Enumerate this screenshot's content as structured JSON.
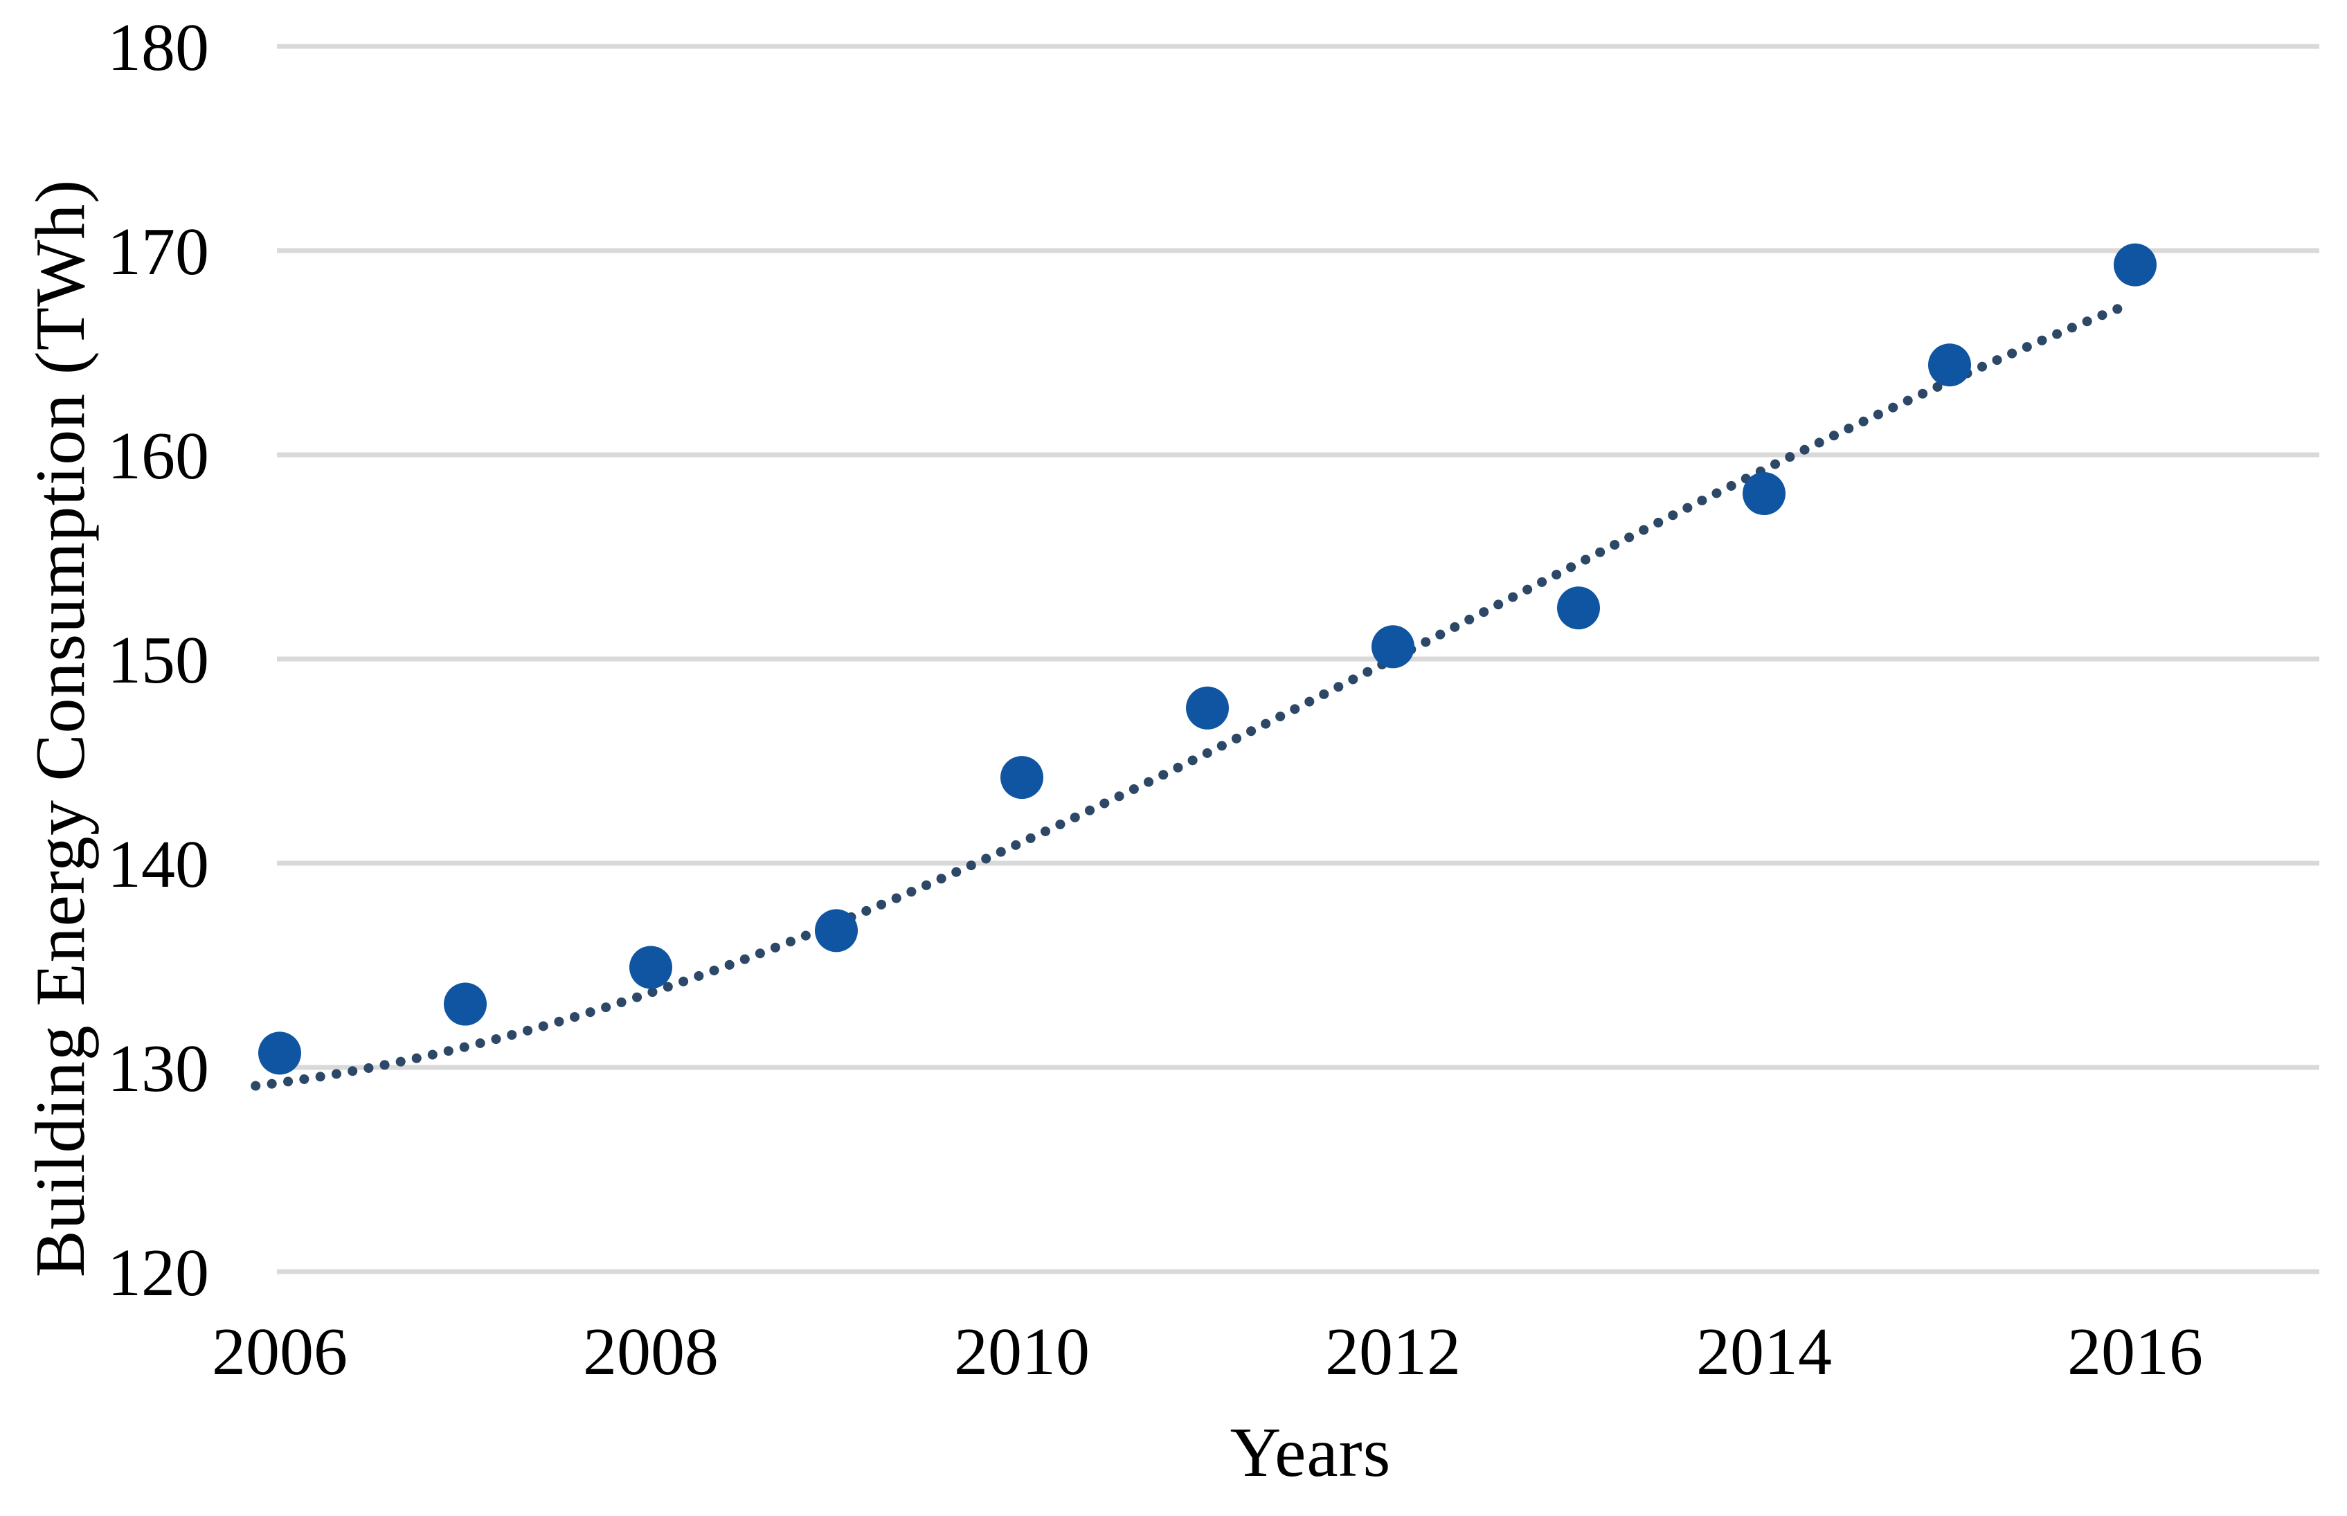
{
  "figure": {
    "background": "#ffffff"
  },
  "y_axis": {
    "title": "Building Energy Consumption (TWh)",
    "ticks": [
      180,
      170,
      160,
      150,
      140,
      130,
      120
    ],
    "min": 120,
    "max": 180
  },
  "x_axis": {
    "title": "Years",
    "ticks": [
      2006,
      2008,
      2010,
      2012,
      2014,
      2016
    ]
  },
  "colors": {
    "marker": "#1055A2",
    "trendline": "#2C4866",
    "gridline": "#D9D9D9",
    "text": "#000000"
  },
  "chart_data": {
    "type": "scatter",
    "title": "",
    "xlabel": "Years",
    "ylabel": "Building Energy Consumption (TWh)",
    "x": [
      2006,
      2007,
      2008,
      2009,
      2010,
      2011,
      2012,
      2013,
      2014,
      2015,
      2016
    ],
    "series": [
      {
        "name": "Building Energy Consumption (TWh)",
        "values": [
          130.7,
          133.1,
          134.9,
          136.7,
          144.2,
          147.6,
          150.6,
          152.5,
          158.1,
          164.4,
          169.3
        ],
        "color": "#1055A2",
        "marker": "circle"
      }
    ],
    "trendline": {
      "style": "dotted",
      "color": "#2C4866",
      "shape": "slightly-convex",
      "bezier": {
        "p0": [
          2005.87,
          129.1
        ],
        "c1": [
          2009.22,
          132.8
        ],
        "c2": [
          2012.57,
          154.9
        ],
        "p3": [
          2015.92,
          167.2
        ]
      }
    },
    "ylim": [
      120,
      180
    ],
    "xlim": [
      2005.6,
      2017.1
    ],
    "grid": "horizontal",
    "legend": "none"
  }
}
